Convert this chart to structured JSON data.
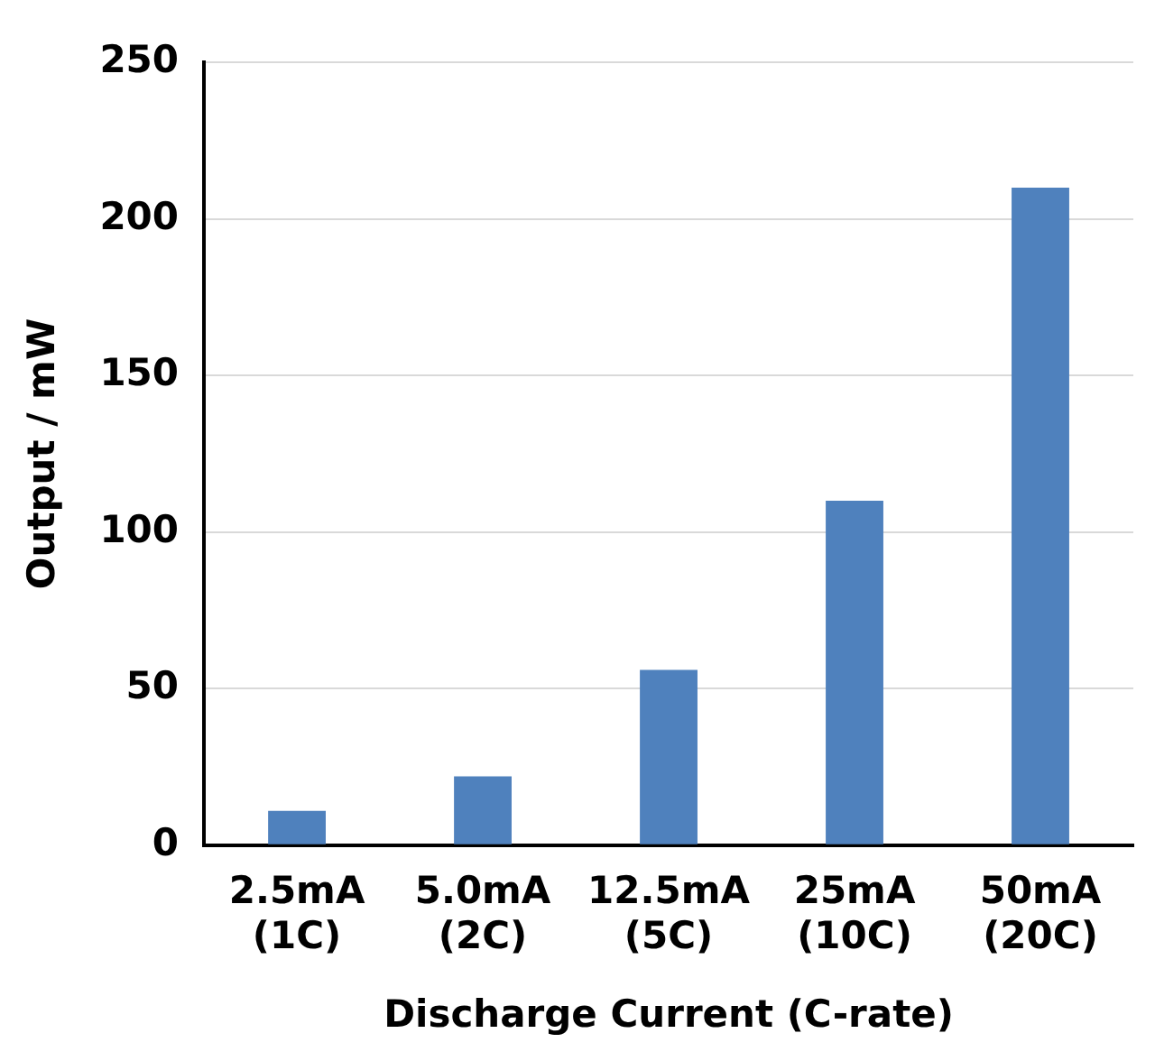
{
  "chart_data": {
    "type": "bar",
    "xlabel": "Discharge Current (C-rate)",
    "ylabel": "Output / mW",
    "categories": [
      "2.5mA (1C)",
      "5.0mA (2C)",
      "12.5mA (5C)",
      "25mA (10C)",
      "50mA (20C)"
    ],
    "values": [
      11,
      22,
      56,
      110,
      210
    ],
    "color": "#4f81bd",
    "ylim": [
      0,
      250
    ],
    "yticks": [
      0,
      50,
      100,
      150,
      200,
      250
    ],
    "grid": "y"
  }
}
